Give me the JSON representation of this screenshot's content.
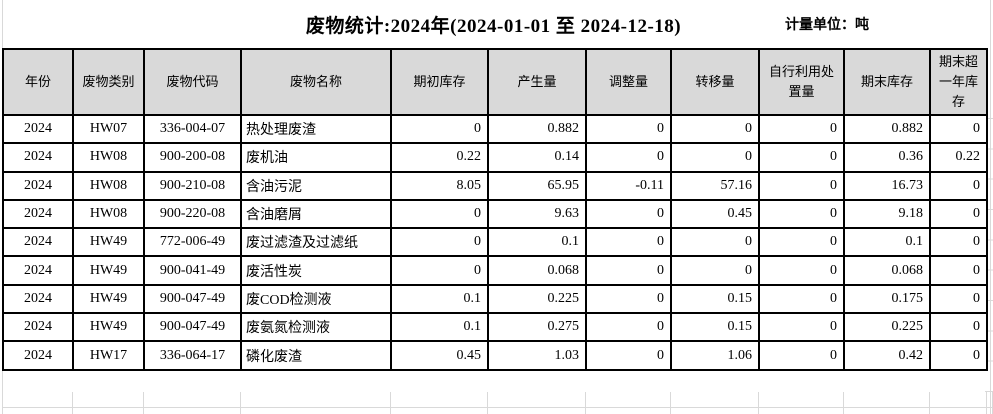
{
  "title": "废物统计:2024年(2024-01-01 至 2024-12-18)",
  "unit_label": "计量单位：吨",
  "colors": {
    "header_bg": "#d9d9d9",
    "table_border": "#000000",
    "sheet_gridline": "#d9d9d9",
    "text": "#000000",
    "background": "#ffffff"
  },
  "table": {
    "headers": [
      "年份",
      "废物类别",
      "废物代码",
      "废物名称",
      "期初库存",
      "产生量",
      "调整量",
      "转移量",
      "自行利用处置量",
      "期末库存",
      "期末超一年库存"
    ],
    "rows": [
      [
        "2024",
        "HW07",
        "336-004-07",
        "热处理废渣",
        "0",
        "0.882",
        "0",
        "0",
        "0",
        "0.882",
        "0"
      ],
      [
        "2024",
        "HW08",
        "900-200-08",
        "废机油",
        "0.22",
        "0.14",
        "0",
        "0",
        "0",
        "0.36",
        "0.22"
      ],
      [
        "2024",
        "HW08",
        "900-210-08",
        "含油污泥",
        "8.05",
        "65.95",
        "-0.11",
        "57.16",
        "0",
        "16.73",
        "0"
      ],
      [
        "2024",
        "HW08",
        "900-220-08",
        "含油磨屑",
        "0",
        "9.63",
        "0",
        "0.45",
        "0",
        "9.18",
        "0"
      ],
      [
        "2024",
        "HW49",
        "772-006-49",
        "废过滤渣及过滤纸",
        "0",
        "0.1",
        "0",
        "0",
        "0",
        "0.1",
        "0"
      ],
      [
        "2024",
        "HW49",
        "900-041-49",
        "废活性炭",
        "0",
        "0.068",
        "0",
        "0",
        "0",
        "0.068",
        "0"
      ],
      [
        "2024",
        "HW49",
        "900-047-49",
        "废COD检测液",
        "0.1",
        "0.225",
        "0",
        "0.15",
        "0",
        "0.175",
        "0"
      ],
      [
        "2024",
        "HW49",
        "900-047-49",
        "废氨氮检测液",
        "0.1",
        "0.275",
        "0",
        "0.15",
        "0",
        "0.225",
        "0"
      ],
      [
        "2024",
        "HW17",
        "336-064-17",
        "磷化废渣",
        "0.45",
        "1.03",
        "0",
        "1.06",
        "0",
        "0.42",
        "0"
      ]
    ]
  }
}
